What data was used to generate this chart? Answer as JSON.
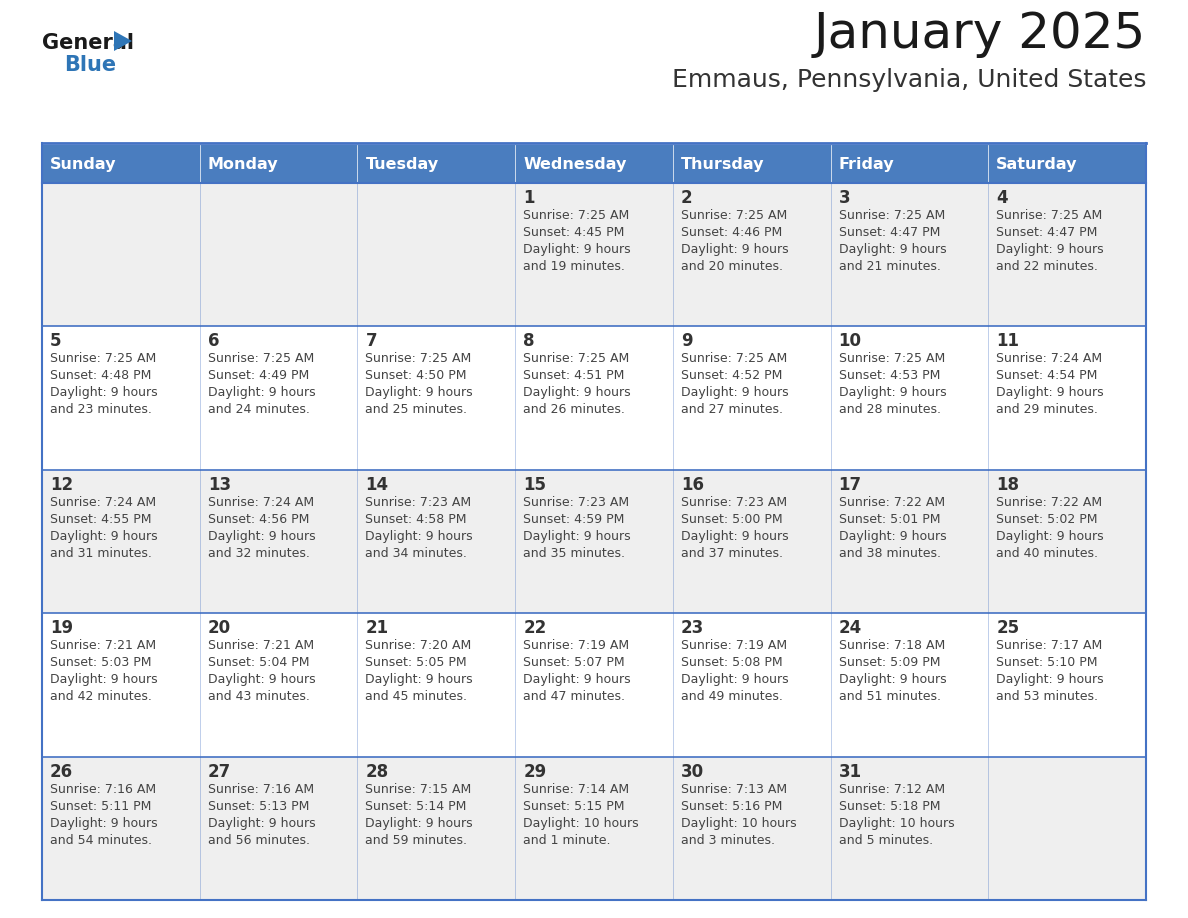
{
  "title": "January 2025",
  "subtitle": "Emmaus, Pennsylvania, United States",
  "days_of_week": [
    "Sunday",
    "Monday",
    "Tuesday",
    "Wednesday",
    "Thursday",
    "Friday",
    "Saturday"
  ],
  "header_bg": "#4A7DBF",
  "header_text": "#FFFFFF",
  "cell_bg_light": "#EFEFEF",
  "cell_bg_white": "#FFFFFF",
  "border_color": "#4472C4",
  "title_color": "#1a1a1a",
  "subtitle_color": "#333333",
  "logo_general_color": "#1a1a1a",
  "logo_blue_color": "#2E75B6",
  "cell_text_color": "#444444",
  "day_num_color": "#333333",
  "weeks": [
    [
      {
        "day": "",
        "sunrise": "",
        "sunset": "",
        "daylight": ""
      },
      {
        "day": "",
        "sunrise": "",
        "sunset": "",
        "daylight": ""
      },
      {
        "day": "",
        "sunrise": "",
        "sunset": "",
        "daylight": ""
      },
      {
        "day": "1",
        "sunrise": "7:25 AM",
        "sunset": "4:45 PM",
        "daylight": "9 hours\nand 19 minutes."
      },
      {
        "day": "2",
        "sunrise": "7:25 AM",
        "sunset": "4:46 PM",
        "daylight": "9 hours\nand 20 minutes."
      },
      {
        "day": "3",
        "sunrise": "7:25 AM",
        "sunset": "4:47 PM",
        "daylight": "9 hours\nand 21 minutes."
      },
      {
        "day": "4",
        "sunrise": "7:25 AM",
        "sunset": "4:47 PM",
        "daylight": "9 hours\nand 22 minutes."
      }
    ],
    [
      {
        "day": "5",
        "sunrise": "7:25 AM",
        "sunset": "4:48 PM",
        "daylight": "9 hours\nand 23 minutes."
      },
      {
        "day": "6",
        "sunrise": "7:25 AM",
        "sunset": "4:49 PM",
        "daylight": "9 hours\nand 24 minutes."
      },
      {
        "day": "7",
        "sunrise": "7:25 AM",
        "sunset": "4:50 PM",
        "daylight": "9 hours\nand 25 minutes."
      },
      {
        "day": "8",
        "sunrise": "7:25 AM",
        "sunset": "4:51 PM",
        "daylight": "9 hours\nand 26 minutes."
      },
      {
        "day": "9",
        "sunrise": "7:25 AM",
        "sunset": "4:52 PM",
        "daylight": "9 hours\nand 27 minutes."
      },
      {
        "day": "10",
        "sunrise": "7:25 AM",
        "sunset": "4:53 PM",
        "daylight": "9 hours\nand 28 minutes."
      },
      {
        "day": "11",
        "sunrise": "7:24 AM",
        "sunset": "4:54 PM",
        "daylight": "9 hours\nand 29 minutes."
      }
    ],
    [
      {
        "day": "12",
        "sunrise": "7:24 AM",
        "sunset": "4:55 PM",
        "daylight": "9 hours\nand 31 minutes."
      },
      {
        "day": "13",
        "sunrise": "7:24 AM",
        "sunset": "4:56 PM",
        "daylight": "9 hours\nand 32 minutes."
      },
      {
        "day": "14",
        "sunrise": "7:23 AM",
        "sunset": "4:58 PM",
        "daylight": "9 hours\nand 34 minutes."
      },
      {
        "day": "15",
        "sunrise": "7:23 AM",
        "sunset": "4:59 PM",
        "daylight": "9 hours\nand 35 minutes."
      },
      {
        "day": "16",
        "sunrise": "7:23 AM",
        "sunset": "5:00 PM",
        "daylight": "9 hours\nand 37 minutes."
      },
      {
        "day": "17",
        "sunrise": "7:22 AM",
        "sunset": "5:01 PM",
        "daylight": "9 hours\nand 38 minutes."
      },
      {
        "day": "18",
        "sunrise": "7:22 AM",
        "sunset": "5:02 PM",
        "daylight": "9 hours\nand 40 minutes."
      }
    ],
    [
      {
        "day": "19",
        "sunrise": "7:21 AM",
        "sunset": "5:03 PM",
        "daylight": "9 hours\nand 42 minutes."
      },
      {
        "day": "20",
        "sunrise": "7:21 AM",
        "sunset": "5:04 PM",
        "daylight": "9 hours\nand 43 minutes."
      },
      {
        "day": "21",
        "sunrise": "7:20 AM",
        "sunset": "5:05 PM",
        "daylight": "9 hours\nand 45 minutes."
      },
      {
        "day": "22",
        "sunrise": "7:19 AM",
        "sunset": "5:07 PM",
        "daylight": "9 hours\nand 47 minutes."
      },
      {
        "day": "23",
        "sunrise": "7:19 AM",
        "sunset": "5:08 PM",
        "daylight": "9 hours\nand 49 minutes."
      },
      {
        "day": "24",
        "sunrise": "7:18 AM",
        "sunset": "5:09 PM",
        "daylight": "9 hours\nand 51 minutes."
      },
      {
        "day": "25",
        "sunrise": "7:17 AM",
        "sunset": "5:10 PM",
        "daylight": "9 hours\nand 53 minutes."
      }
    ],
    [
      {
        "day": "26",
        "sunrise": "7:16 AM",
        "sunset": "5:11 PM",
        "daylight": "9 hours\nand 54 minutes."
      },
      {
        "day": "27",
        "sunrise": "7:16 AM",
        "sunset": "5:13 PM",
        "daylight": "9 hours\nand 56 minutes."
      },
      {
        "day": "28",
        "sunrise": "7:15 AM",
        "sunset": "5:14 PM",
        "daylight": "9 hours\nand 59 minutes."
      },
      {
        "day": "29",
        "sunrise": "7:14 AM",
        "sunset": "5:15 PM",
        "daylight": "10 hours\nand 1 minute."
      },
      {
        "day": "30",
        "sunrise": "7:13 AM",
        "sunset": "5:16 PM",
        "daylight": "10 hours\nand 3 minutes."
      },
      {
        "day": "31",
        "sunrise": "7:12 AM",
        "sunset": "5:18 PM",
        "daylight": "10 hours\nand 5 minutes."
      },
      {
        "day": "",
        "sunrise": "",
        "sunset": "",
        "daylight": ""
      }
    ]
  ]
}
